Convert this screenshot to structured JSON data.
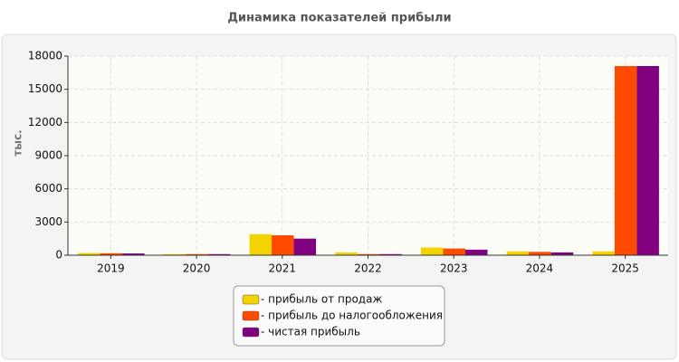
{
  "chart_data": {
    "type": "bar",
    "title": "Динамика показателей прибыли",
    "y_label": "тыс.",
    "categories": [
      "2019",
      "2020",
      "2021",
      "2022",
      "2023",
      "2024",
      "2025"
    ],
    "series": [
      {
        "name": "- прибыль от продаж",
        "color": "#f5d300",
        "values": [
          200,
          100,
          1900,
          250,
          700,
          350,
          350
        ]
      },
      {
        "name": "- прибыль до налогообложения",
        "color": "#ff4a00",
        "values": [
          180,
          100,
          1800,
          100,
          600,
          300,
          17100
        ]
      },
      {
        "name": "- чистая прибыль",
        "color": "#800080",
        "values": [
          160,
          100,
          1500,
          100,
          500,
          250,
          17100
        ]
      }
    ],
    "ylim": [
      0,
      18000
    ],
    "yticks": [
      0,
      3000,
      6000,
      9000,
      12000,
      15000,
      18000
    ],
    "grid": true
  }
}
